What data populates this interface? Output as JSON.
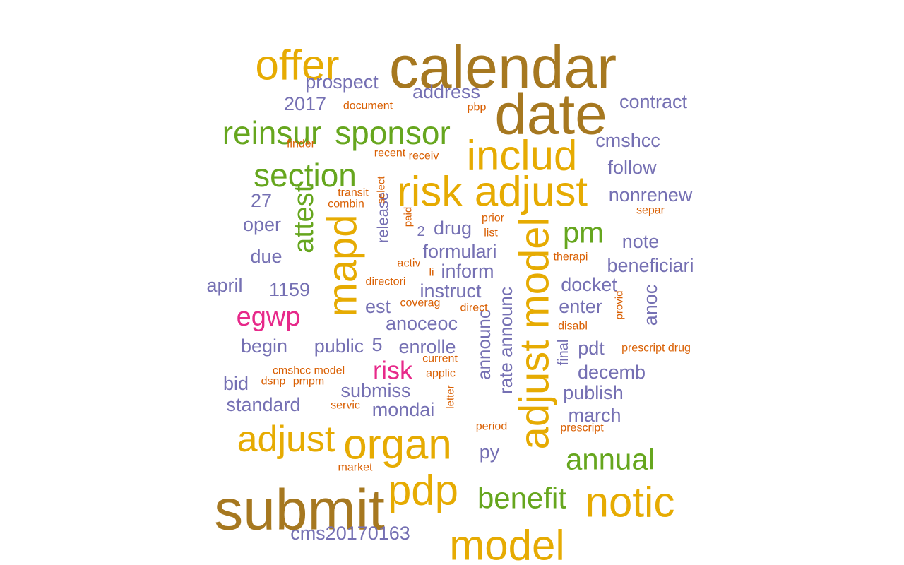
{
  "word_cloud": {
    "palette": {
      "brown": "#A67820",
      "gold": "#E6AB02",
      "green": "#66A61E",
      "magenta": "#E7298A",
      "purple": "#7570B3",
      "orange": "#D95F02"
    },
    "words": [
      {
        "text": "calendar",
        "color": "brown"
      },
      {
        "text": "date",
        "color": "brown"
      },
      {
        "text": "submit",
        "color": "brown"
      },
      {
        "text": "offer",
        "color": "gold"
      },
      {
        "text": "includ",
        "color": "gold"
      },
      {
        "text": "risk adjust",
        "color": "gold"
      },
      {
        "text": "adjust model",
        "color": "gold"
      },
      {
        "text": "mapd",
        "color": "gold"
      },
      {
        "text": "organ",
        "color": "gold"
      },
      {
        "text": "adjust",
        "color": "gold"
      },
      {
        "text": "pdp",
        "color": "gold"
      },
      {
        "text": "notic",
        "color": "gold"
      },
      {
        "text": "model",
        "color": "gold"
      },
      {
        "text": "reinsur",
        "color": "green"
      },
      {
        "text": "sponsor",
        "color": "green"
      },
      {
        "text": "section",
        "color": "green"
      },
      {
        "text": "attest",
        "color": "green"
      },
      {
        "text": "pm",
        "color": "green"
      },
      {
        "text": "annual",
        "color": "green"
      },
      {
        "text": "benefit",
        "color": "green"
      },
      {
        "text": "egwp",
        "color": "magenta"
      },
      {
        "text": "risk",
        "color": "magenta"
      },
      {
        "text": "prospect",
        "color": "purple"
      },
      {
        "text": "address",
        "color": "purple"
      },
      {
        "text": "2017",
        "color": "purple"
      },
      {
        "text": "contract",
        "color": "purple"
      },
      {
        "text": "cmshcc",
        "color": "purple"
      },
      {
        "text": "follow",
        "color": "purple"
      },
      {
        "text": "nonrenew",
        "color": "purple"
      },
      {
        "text": "27",
        "color": "purple"
      },
      {
        "text": "oper",
        "color": "purple"
      },
      {
        "text": "drug",
        "color": "purple"
      },
      {
        "text": "note",
        "color": "purple"
      },
      {
        "text": "formulari",
        "color": "purple"
      },
      {
        "text": "due",
        "color": "purple"
      },
      {
        "text": "beneficiari",
        "color": "purple"
      },
      {
        "text": "inform",
        "color": "purple"
      },
      {
        "text": "april",
        "color": "purple"
      },
      {
        "text": "1159",
        "color": "purple"
      },
      {
        "text": "instruct",
        "color": "purple"
      },
      {
        "text": "docket",
        "color": "purple"
      },
      {
        "text": "est",
        "color": "purple"
      },
      {
        "text": "enter",
        "color": "purple"
      },
      {
        "text": "anoceoc",
        "color": "purple"
      },
      {
        "text": "anoc",
        "color": "purple"
      },
      {
        "text": "begin",
        "color": "purple"
      },
      {
        "text": "public",
        "color": "purple"
      },
      {
        "text": "5",
        "color": "purple"
      },
      {
        "text": "enrolle",
        "color": "purple"
      },
      {
        "text": "pdt",
        "color": "purple"
      },
      {
        "text": "bid",
        "color": "purple"
      },
      {
        "text": "decemb",
        "color": "purple"
      },
      {
        "text": "submiss",
        "color": "purple"
      },
      {
        "text": "publish",
        "color": "purple"
      },
      {
        "text": "standard",
        "color": "purple"
      },
      {
        "text": "mondai",
        "color": "purple"
      },
      {
        "text": "march",
        "color": "purple"
      },
      {
        "text": "py",
        "color": "purple"
      },
      {
        "text": "cms20170163",
        "color": "purple"
      },
      {
        "text": "release",
        "color": "purple"
      },
      {
        "text": "2",
        "color": "purple"
      },
      {
        "text": "announc",
        "color": "purple"
      },
      {
        "text": "rate announc",
        "color": "purple"
      },
      {
        "text": "final",
        "color": "purple"
      },
      {
        "text": "document",
        "color": "orange"
      },
      {
        "text": "pbp",
        "color": "orange"
      },
      {
        "text": "finder",
        "color": "orange"
      },
      {
        "text": "recent",
        "color": "orange"
      },
      {
        "text": "receiv",
        "color": "orange"
      },
      {
        "text": "transit",
        "color": "orange"
      },
      {
        "text": "combin",
        "color": "orange"
      },
      {
        "text": "select",
        "color": "orange"
      },
      {
        "text": "paid",
        "color": "orange"
      },
      {
        "text": "prior",
        "color": "orange"
      },
      {
        "text": "list",
        "color": "orange"
      },
      {
        "text": "separ",
        "color": "orange"
      },
      {
        "text": "therapi",
        "color": "orange"
      },
      {
        "text": "activ",
        "color": "orange"
      },
      {
        "text": "li",
        "color": "orange"
      },
      {
        "text": "directori",
        "color": "orange"
      },
      {
        "text": "coverag",
        "color": "orange"
      },
      {
        "text": "direct",
        "color": "orange"
      },
      {
        "text": "provid",
        "color": "orange"
      },
      {
        "text": "disabl",
        "color": "orange"
      },
      {
        "text": "current",
        "color": "orange"
      },
      {
        "text": "prescript drug",
        "color": "orange"
      },
      {
        "text": "cmshcc model",
        "color": "orange"
      },
      {
        "text": "applic",
        "color": "orange"
      },
      {
        "text": "dsnp",
        "color": "orange"
      },
      {
        "text": "pmpm",
        "color": "orange"
      },
      {
        "text": "servic",
        "color": "orange"
      },
      {
        "text": "letter",
        "color": "orange"
      },
      {
        "text": "period",
        "color": "orange"
      },
      {
        "text": "prescript",
        "color": "orange"
      },
      {
        "text": "market",
        "color": "orange"
      }
    ]
  }
}
